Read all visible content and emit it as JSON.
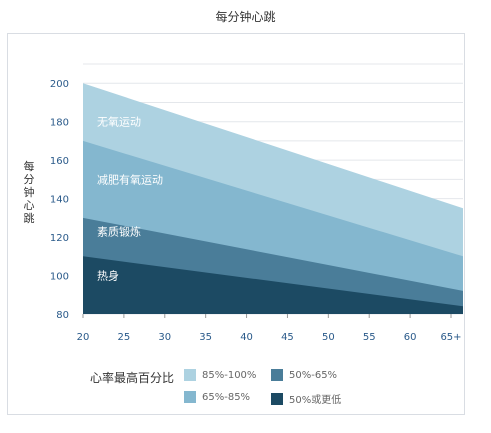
{
  "chart_data": {
    "type": "area",
    "title": "每分钟心跳",
    "ylabel": "每分钟心跳",
    "xlabel": "",
    "x_ticks": [
      "20",
      "25",
      "30",
      "35",
      "40",
      "45",
      "50",
      "55",
      "60",
      "65+"
    ],
    "x_values": [
      20,
      65
    ],
    "ylim": [
      80,
      210
    ],
    "y_ticks": [
      80,
      100,
      120,
      140,
      160,
      180,
      200
    ],
    "grid": true,
    "series": [
      {
        "name": "85%-100%",
        "values": [
          200,
          135
        ],
        "color": "#add2e1"
      },
      {
        "name": "65%-85%",
        "values": [
          170,
          110
        ],
        "color": "#84b7cf"
      },
      {
        "name": "50%-65%",
        "values": [
          130,
          92
        ],
        "color": "#4a7d99"
      },
      {
        "name": "50%或更低",
        "values": [
          110,
          84
        ],
        "color": "#1c4a63"
      }
    ],
    "zone_labels": [
      "无氧运动",
      "减肥有氧运动",
      "素质锻炼",
      "热身"
    ],
    "legend_title": "心率最高百分比",
    "legend_placement": "bottom"
  }
}
